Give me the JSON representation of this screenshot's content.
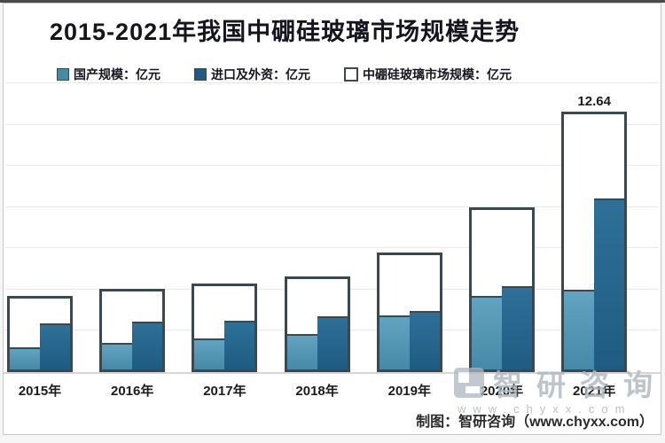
{
  "title": "2015-2021年我国中硼硅玻璃市场规模走势",
  "legend": {
    "items": [
      {
        "label": "国产规模：亿元",
        "swatch": "light"
      },
      {
        "label": "进口及外资：亿元",
        "swatch": "dark"
      },
      {
        "label": "中硼硅玻璃市场规模：亿元",
        "swatch": "outline"
      }
    ]
  },
  "chart_data": {
    "type": "bar",
    "title": "2015-2021年我国中硼硅玻璃市场规模走势",
    "categories": [
      "2015年",
      "2016年",
      "2017年",
      "2018年",
      "2019年",
      "2020年",
      "2021年"
    ],
    "series": [
      {
        "name": "国产规模：亿元",
        "style": "light",
        "values": [
          1.2,
          1.4,
          1.65,
          1.85,
          2.75,
          3.7,
          4.0
        ]
      },
      {
        "name": "进口及外资：亿元",
        "style": "dark",
        "values": [
          2.35,
          2.45,
          2.5,
          2.7,
          2.95,
          4.15,
          8.4
        ]
      },
      {
        "name": "中硼硅玻璃市场规模：亿元",
        "style": "outline",
        "values": [
          3.7,
          4.05,
          4.3,
          4.65,
          5.8,
          8.0,
          12.64
        ]
      }
    ],
    "data_labels": [
      null,
      null,
      null,
      null,
      null,
      null,
      "12.64"
    ],
    "xlabel": "",
    "ylabel": "",
    "ylim": [
      0,
      14
    ],
    "grid_step": 2,
    "grid": true,
    "y_axis_labels_visible": false,
    "legend_position": "top"
  },
  "footer": {
    "attribution": "制图：智研咨询（www.chyxx.com）"
  },
  "watermark": {
    "brand": "智研咨询",
    "url": "www.chyxx.com"
  },
  "colors": {
    "bar_light": "#4589a8",
    "bar_light_top": "#62a3c0",
    "bar_dark": "#1f5b82",
    "bar_dark_top": "#2e7098",
    "outline_border": "#3c4850",
    "gridline": "#e9e9e9",
    "axis": "#d6d6d6",
    "title_text": "#15151f",
    "watermark": "#aeb6bf"
  }
}
